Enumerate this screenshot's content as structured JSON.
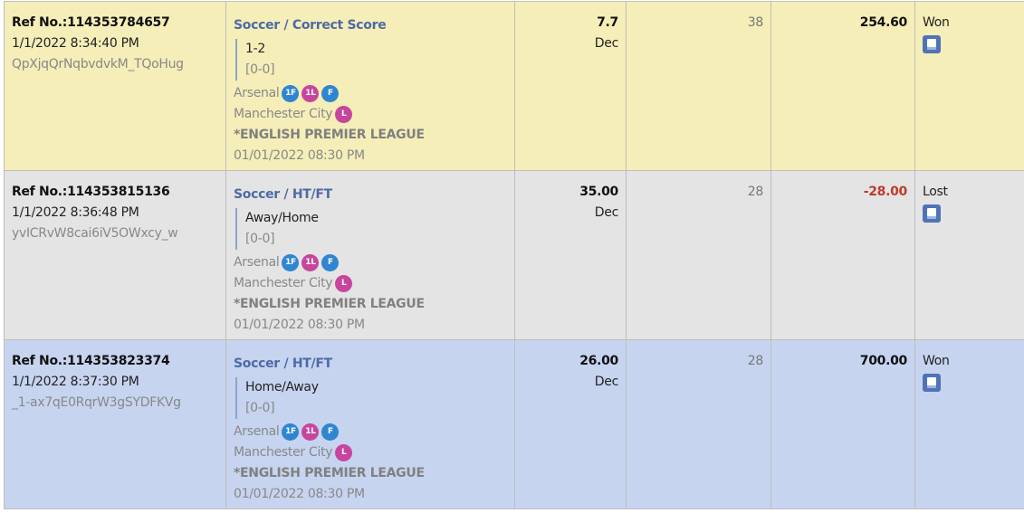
{
  "rows": [
    {
      "theme": "yellow",
      "ref": "Ref No.:114353784657",
      "time": "1/1/2022 8:34:40 PM",
      "code": "QpXjqQrNqbvdvkM_TQoHug",
      "sport": "Soccer / Correct Score",
      "selection": "1-2",
      "score": "[0-0]",
      "home": "Arsenal",
      "home_badges": [
        "1F",
        "1L",
        "F"
      ],
      "away": "Manchester City",
      "away_badges": [
        "L"
      ],
      "league": "*ENGLISH PREMIER LEAGUE",
      "match_time": "01/01/2022 08:30 PM",
      "odds": "7.7",
      "odds_type": "Dec",
      "stake": "38",
      "result_amount": "254.60",
      "status": "Won",
      "negative": false
    },
    {
      "theme": "gray",
      "ref": "Ref No.:114353815136",
      "time": "1/1/2022 8:36:48 PM",
      "code": "yvICRvW8cai6iV5OWxcy_w",
      "sport": "Soccer / HT/FT",
      "selection": "Away/Home",
      "score": "[0-0]",
      "home": "Arsenal",
      "home_badges": [
        "1F",
        "1L",
        "F"
      ],
      "away": "Manchester City",
      "away_badges": [
        "L"
      ],
      "league": "*ENGLISH PREMIER LEAGUE",
      "match_time": "01/01/2022 08:30 PM",
      "odds": "35.00",
      "odds_type": "Dec",
      "stake": "28",
      "result_amount": "-28.00",
      "status": "Lost",
      "negative": true
    },
    {
      "theme": "blue",
      "ref": "Ref No.:114353823374",
      "time": "1/1/2022 8:37:30 PM",
      "code": "_1-ax7qE0RqrW3gSYDFKVg",
      "sport": "Soccer / HT/FT",
      "selection": "Home/Away",
      "score": "[0-0]",
      "home": "Arsenal",
      "home_badges": [
        "1F",
        "1L",
        "F"
      ],
      "away": "Manchester City",
      "away_badges": [
        "L"
      ],
      "league": "*ENGLISH PREMIER LEAGUE",
      "match_time": "01/01/2022 08:30 PM",
      "odds": "26.00",
      "odds_type": "Dec",
      "stake": "28",
      "result_amount": "700.00",
      "status": "Won",
      "negative": false
    }
  ],
  "badge_colors": {
    "F": "#2f86d0",
    "L": "#c8459e"
  }
}
